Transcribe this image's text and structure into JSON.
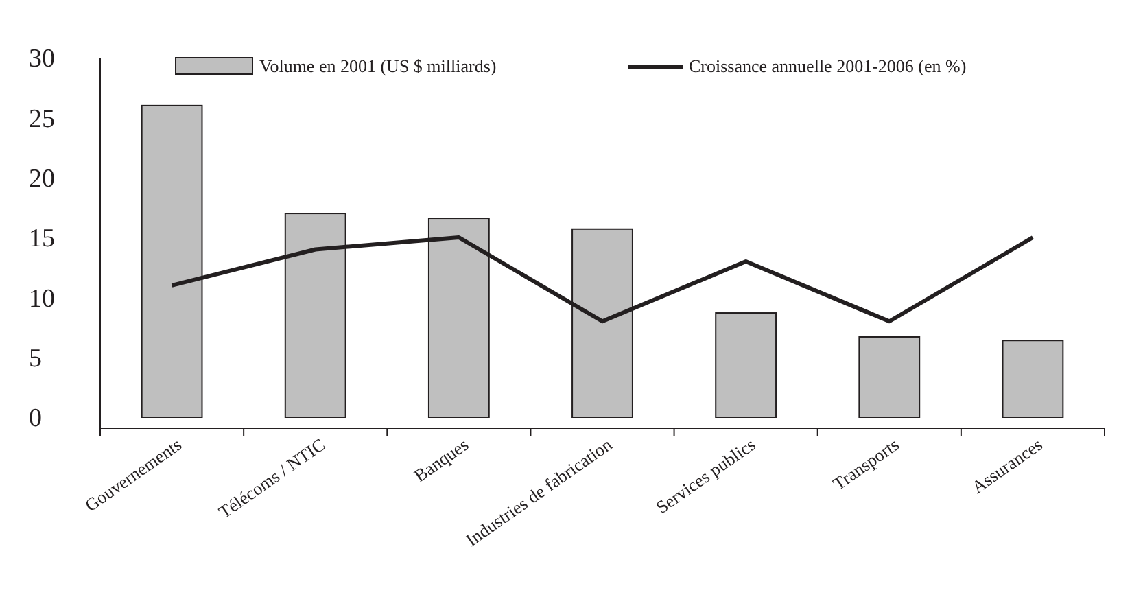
{
  "chart_data": {
    "type": "bar",
    "categories": [
      "Gouvernements",
      "Télécoms / NTIC",
      "Banques",
      "Industries de fabrication",
      "Services publics",
      "Transports",
      "Assurances"
    ],
    "series": [
      {
        "name": "Volume en 2001 (US $ milliards)",
        "color": "#bfbfbf",
        "values": [
          26,
          17,
          16.6,
          15.7,
          8.7,
          6.7,
          6.4
        ]
      },
      {
        "name": "Croissance annuelle 2001-2006 (en %)",
        "type": "line",
        "color": "#231f20",
        "values": [
          11,
          14,
          15,
          8,
          13,
          8,
          15
        ]
      }
    ],
    "ylim": [
      0,
      30
    ],
    "yticks": [
      0,
      5,
      10,
      15,
      20,
      25,
      30
    ],
    "grid": false,
    "legend": "top",
    "marker": "none",
    "line_style": "solid"
  }
}
